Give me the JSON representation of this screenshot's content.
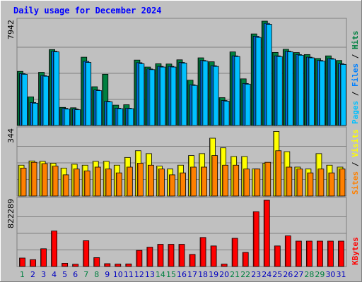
{
  "chart_data": {
    "type": "bar",
    "title": "Daily usage for December 2024",
    "days": [
      "1",
      "2",
      "3",
      "4",
      "5",
      "6",
      "7",
      "8",
      "9",
      "10",
      "11",
      "12",
      "13",
      "14",
      "15",
      "16",
      "17",
      "18",
      "19",
      "20",
      "21",
      "22",
      "23",
      "24",
      "25",
      "26",
      "27",
      "28",
      "29",
      "30",
      "31"
    ],
    "weekend_days": [
      "1",
      "7",
      "8",
      "14",
      "15",
      "21",
      "22",
      "28",
      "29"
    ],
    "panels": [
      {
        "id": "hits-files-pages",
        "max_label": "7942",
        "ymax": 7942,
        "side_label": [
          "Pages",
          "Files",
          "Hits"
        ],
        "series": [
          {
            "name": "Hits",
            "color": "#008040",
            "values": [
              4120,
              2180,
              4050,
              5780,
              1380,
              1350,
              5200,
              2950,
              3900,
              1550,
              1580,
              4980,
              4450,
              4700,
              4680,
              5000,
              3450,
              5150,
              4850,
              2120,
              5600,
              3550,
              6970,
              7942,
              5560,
              5800,
              5550,
              5400,
              5100,
              5300,
              4950
            ]
          },
          {
            "name": "Files",
            "color": "#0080ff",
            "values": [
              3950,
              1750,
              3800,
              5650,
              1300,
              1250,
              4880,
              2700,
              1840,
              1320,
              1320,
              4780,
              4300,
              4500,
              4500,
              4800,
              3100,
              4950,
              4550,
              1900,
              5300,
              3200,
              6790,
              7770,
              5300,
              5650,
              5400,
              5200,
              4950,
              5100,
              4700
            ]
          },
          {
            "name": "Pages",
            "color": "#00c0ff",
            "values": [
              3900,
              1700,
              3750,
              5600,
              1250,
              1200,
              4800,
              2650,
              1800,
              1280,
              1280,
              4700,
              4250,
              4450,
              4450,
              4750,
              3050,
              4900,
              4500,
              1850,
              5250,
              3150,
              6700,
              7700,
              5250,
              5600,
              5350,
              5150,
              4900,
              5050,
              4650
            ]
          }
        ]
      },
      {
        "id": "visits-sites",
        "max_label": "344",
        "ymax": 344,
        "side_label": [
          "Sites",
          "Visits"
        ],
        "series": [
          {
            "name": "Visits",
            "color": "#ffff00",
            "values": [
              160,
              182,
              180,
              170,
              145,
              165,
              160,
              180,
              180,
              160,
              200,
              235,
              220,
              155,
              140,
              160,
              210,
              220,
              300,
              250,
              205,
              205,
              140,
              170,
              335,
              230,
              150,
              140,
              220,
              160,
              150
            ]
          },
          {
            "name": "Sites",
            "color": "#ff8000",
            "values": [
              145,
              175,
              168,
              155,
              110,
              140,
              130,
              150,
              140,
              120,
              150,
              170,
              160,
              140,
              110,
              120,
              150,
              150,
              210,
              160,
              160,
              140,
              140,
              175,
              235,
              150,
              140,
              120,
              140,
              120,
              140
            ]
          }
        ]
      },
      {
        "id": "kbytes",
        "max_label": "822289",
        "ymax": 822289,
        "side_label": [
          "KBytes"
        ],
        "series": [
          {
            "name": "KBytes",
            "color": "#ff0000",
            "values": [
              105000,
              85000,
              220000,
              440000,
              40000,
              28000,
              320000,
              110000,
              35000,
              30000,
              32000,
              200000,
              240000,
              275000,
              275000,
              275000,
              150000,
              360000,
              255000,
              30000,
              350000,
              175000,
              680000,
              822289,
              255000,
              380000,
              315000,
              315000,
              315000,
              315000,
              315000
            ]
          }
        ]
      }
    ],
    "colors": {
      "title": "#0000ff",
      "background": "#c0c0c0",
      "page": "#ffffff",
      "weekday_label": "#0000c0",
      "weekend_label": "#008040",
      "separator": "#000000"
    }
  }
}
